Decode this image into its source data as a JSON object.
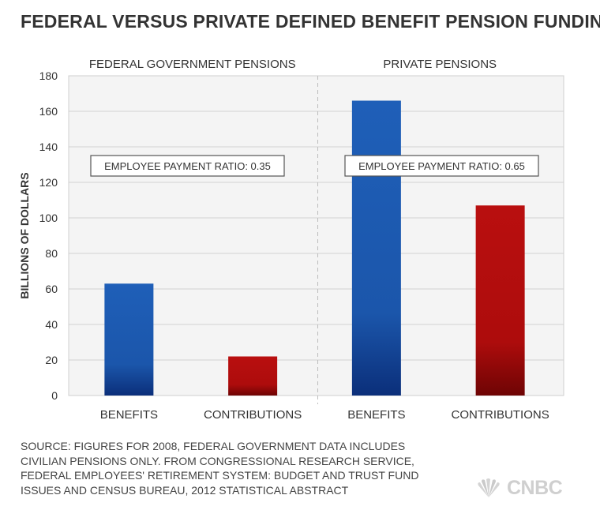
{
  "chart_data": {
    "type": "bar",
    "title": "FEDERAL VERSUS PRIVATE DEFINED BENEFIT PENSION FUNDING",
    "ylabel": "BILLIONS OF DOLLARS",
    "ylim": [
      0,
      180
    ],
    "yticks": [
      "0",
      "20",
      "40",
      "60",
      "80",
      "100",
      "120",
      "140",
      "160",
      "180"
    ],
    "grid": true,
    "panels": [
      {
        "name": "FEDERAL GOVERNMENT PENSIONS",
        "annotation": "EMPLOYEE PAYMENT RATIO: 0.35",
        "categories": [
          "BENEFITS",
          "CONTRIBUTIONS"
        ],
        "values": [
          63,
          22
        ]
      },
      {
        "name": "PRIVATE PENSIONS",
        "annotation": "EMPLOYEE PAYMENT RATIO: 0.65",
        "categories": [
          "BENEFITS",
          "CONTRIBUTIONS"
        ],
        "values": [
          166,
          107
        ]
      }
    ],
    "colors": {
      "benefits": "#1f5fb8",
      "contributions": "#b00e0e"
    }
  },
  "source_lines": [
    "SOURCE: FIGURES FOR 2008, FEDERAL GOVERNMENT DATA INCLUDES",
    "CIVILIAN PENSIONS ONLY. FROM CONGRESSIONAL RESEARCH SERVICE,",
    "FEDERAL EMPLOYEES' RETIREMENT SYSTEM: BUDGET AND TRUST FUND",
    "ISSUES AND CENSUS BUREAU, 2012 STATISTICAL ABSTRACT"
  ],
  "logo": {
    "text": "CNBC",
    "icon": "peacock-icon"
  }
}
